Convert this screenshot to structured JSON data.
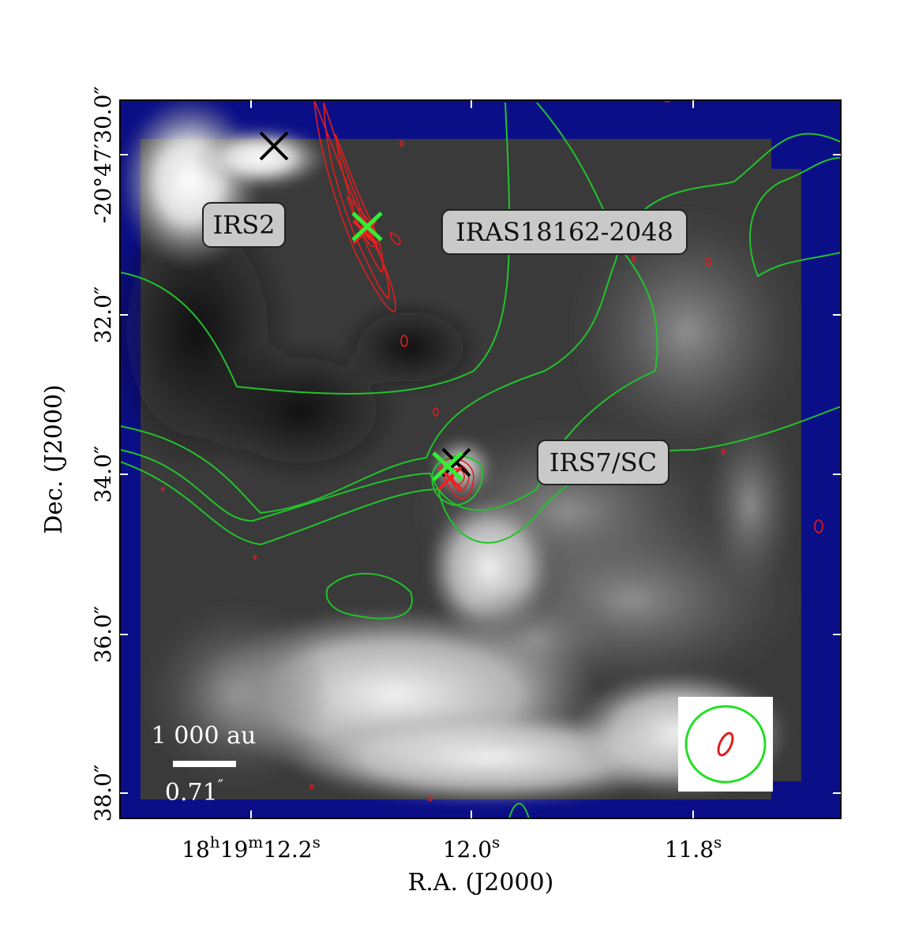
{
  "axes": {
    "xlabel": "R.A. (J2000)",
    "ylabel": "Dec. (J2000)",
    "ra_ticks": [
      {
        "h": "18",
        "m": "19",
        "s": "12.2"
      },
      {
        "h": "",
        "m": "",
        "s": "12.0"
      },
      {
        "h": "",
        "m": "",
        "s": "11.8"
      }
    ],
    "dec_ticks": [
      "-20°47′30.0″",
      "32.0″",
      "34.0″",
      "36.0″",
      "38.0″"
    ],
    "ra_unit_h": "h",
    "ra_unit_m": "m",
    "ra_unit_s": "s"
  },
  "labels": {
    "irs2": "IRS2",
    "iras": "IRAS18162-2048",
    "irs7": "IRS7/SC"
  },
  "scalebar": {
    "physical": "1 000 au",
    "angular": "0.71",
    "angular_unit": "″"
  },
  "colors": {
    "background_blue": "#0b0f87",
    "green_contour": "#22c22c",
    "red_contour": "#e01e1e",
    "cross_green": "#33ee33",
    "cross_black": "#000000",
    "cross_red": "#ee2222"
  }
}
